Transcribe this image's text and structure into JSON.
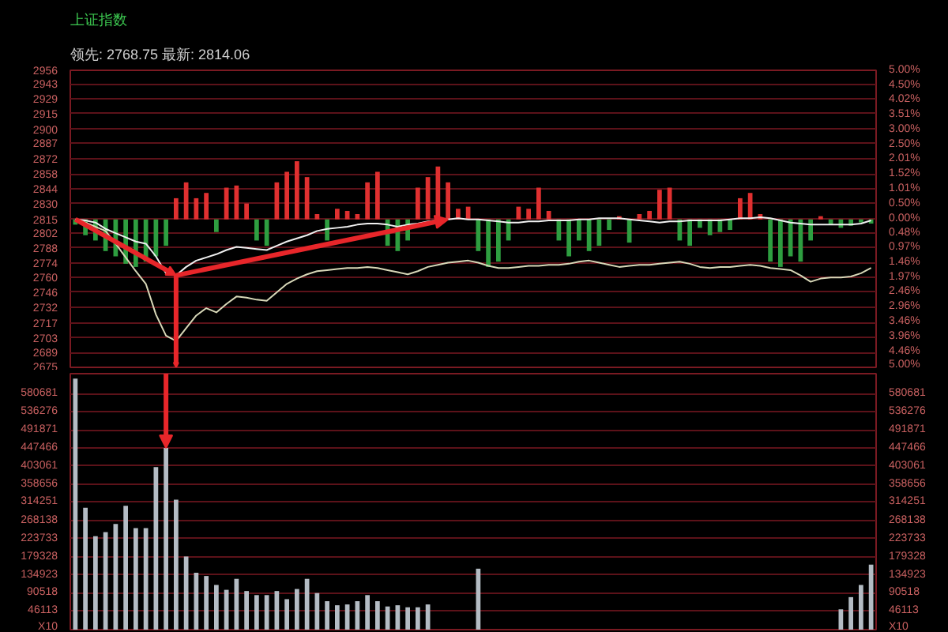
{
  "chart_data": [
    {
      "type": "line",
      "title": "上证指数",
      "subtitle": "领先: 2768.75  最新: 2814.06",
      "categories": [
        null,
        null,
        null,
        null,
        null,
        null,
        null,
        null,
        null,
        null,
        null,
        null,
        null,
        null,
        null,
        null,
        null,
        null,
        null,
        null,
        null,
        null,
        null,
        null,
        null,
        null,
        null,
        null,
        null,
        null,
        null,
        null,
        null,
        null,
        null,
        null,
        null,
        null,
        null,
        null,
        null,
        null,
        null,
        null,
        null,
        null,
        null,
        null,
        null,
        null,
        null,
        null,
        null,
        null,
        null,
        null,
        null,
        null,
        null,
        null,
        null,
        null,
        null,
        null,
        null,
        null,
        null,
        null,
        null,
        null,
        null,
        null,
        null,
        null,
        null,
        null,
        null,
        null,
        null,
        null
      ],
      "ylim": [
        2675,
        2956
      ],
      "yticks": [
        2675,
        2689,
        2703,
        2717,
        2732,
        2746,
        2760,
        2774,
        2788,
        2802,
        2815,
        2830,
        2844,
        2858,
        2872,
        2887,
        2900,
        2915,
        2929,
        2943,
        2956
      ],
      "y2lim": [
        -5,
        5
      ],
      "y2ticks": [
        {
          "value": -5,
          "label": "5.00%"
        },
        {
          "value": -4.46,
          "label": "4.46%"
        },
        {
          "value": -3.96,
          "label": "3.96%"
        },
        {
          "value": -3.46,
          "label": "3.46%"
        },
        {
          "value": -2.96,
          "label": "2.96%"
        },
        {
          "value": -2.46,
          "label": "2.46%"
        },
        {
          "value": -1.97,
          "label": "1.97%"
        },
        {
          "value": -1.46,
          "label": "1.46%"
        },
        {
          "value": -0.97,
          "label": "0.97%"
        },
        {
          "value": -0.48,
          "label": "0.48%"
        },
        {
          "value": 0,
          "label": "0.00%"
        },
        {
          "value": 0.5,
          "label": "0.50%"
        },
        {
          "value": 1.01,
          "label": "1.01%"
        },
        {
          "value": 1.52,
          "label": "1.52%"
        },
        {
          "value": 2.01,
          "label": "2.01%"
        },
        {
          "value": 2.5,
          "label": "2.50%"
        },
        {
          "value": 3,
          "label": "3.00%"
        },
        {
          "value": 3.51,
          "label": "3.51%"
        },
        {
          "value": 4.02,
          "label": "4.02%"
        },
        {
          "value": 4.5,
          "label": "4.50%"
        },
        {
          "value": 5,
          "label": "5.00%"
        }
      ],
      "tick_labels": "y",
      "grid": "y",
      "series": [
        {
          "type": "bar",
          "base": [
            2815,
            2815,
            2815,
            2815,
            2815,
            2815,
            2815,
            2815,
            2815,
            2815,
            2815,
            2815,
            2815,
            2815,
            2815,
            2815,
            2815,
            2815,
            2815,
            2815,
            2815,
            2815,
            2815,
            2815,
            2815,
            2815,
            2815,
            2815,
            2815,
            2815,
            2815,
            2815,
            2815,
            2815,
            2815,
            2815,
            2815,
            2815,
            2815,
            2815,
            2815,
            2815,
            2815,
            2815,
            2815,
            2815,
            2815,
            2815,
            2815,
            2815,
            2815,
            2815,
            2815,
            2815,
            2815,
            2815,
            2815,
            2815,
            2815,
            2815,
            2815,
            2815,
            2815,
            2815,
            2815,
            2815,
            2815,
            2815,
            2815,
            2815,
            2815,
            2815,
            2815,
            2815,
            2815,
            2815,
            2815,
            2815,
            2815,
            2815
          ],
          "values": [
            -5,
            -15,
            -20,
            -30,
            -35,
            -42,
            -45,
            -40,
            -35,
            -25,
            20,
            35,
            20,
            25,
            -12,
            30,
            32,
            15,
            -20,
            -25,
            35,
            45,
            55,
            40,
            5,
            -20,
            10,
            8,
            5,
            35,
            45,
            -25,
            -30,
            -20,
            30,
            40,
            50,
            35,
            10,
            12,
            -30,
            -45,
            -40,
            -20,
            12,
            10,
            30,
            8,
            -20,
            -35,
            -20,
            -30,
            -25,
            -10,
            3,
            -22,
            5,
            8,
            28,
            30,
            -20,
            -25,
            -8,
            -15,
            -12,
            -10,
            20,
            25,
            5,
            -40,
            -45,
            -35,
            -40,
            -20,
            3,
            -5,
            -8,
            -6,
            -3,
            -4
          ],
          "colors": [
            "#2e9e40",
            "#2e9e40",
            "#2e9e40",
            "#2e9e40",
            "#2e9e40",
            "#2e9e40",
            "#2e9e40",
            "#2e9e40",
            "#2e9e40",
            "#2e9e40",
            "#e03030",
            "#e03030",
            "#e03030",
            "#e03030",
            "#2e9e40",
            "#e03030",
            "#e03030",
            "#e03030",
            "#2e9e40",
            "#2e9e40",
            "#e03030",
            "#e03030",
            "#e03030",
            "#e03030",
            "#e03030",
            "#2e9e40",
            "#e03030",
            "#e03030",
            "#e03030",
            "#e03030",
            "#e03030",
            "#2e9e40",
            "#2e9e40",
            "#2e9e40",
            "#e03030",
            "#e03030",
            "#e03030",
            "#e03030",
            "#e03030",
            "#e03030",
            "#2e9e40",
            "#2e9e40",
            "#2e9e40",
            "#2e9e40",
            "#e03030",
            "#e03030",
            "#e03030",
            "#e03030",
            "#2e9e40",
            "#2e9e40",
            "#2e9e40",
            "#2e9e40",
            "#2e9e40",
            "#2e9e40",
            "#e03030",
            "#2e9e40",
            "#e03030",
            "#e03030",
            "#e03030",
            "#e03030",
            "#2e9e40",
            "#2e9e40",
            "#2e9e40",
            "#2e9e40",
            "#2e9e40",
            "#2e9e40",
            "#e03030",
            "#e03030",
            "#e03030",
            "#2e9e40",
            "#2e9e40",
            "#2e9e40",
            "#2e9e40",
            "#2e9e40",
            "#e03030",
            "#2e9e40",
            "#2e9e40",
            "#2e9e40",
            "#2e9e40",
            "#2e9e40"
          ]
        },
        {
          "type": "line",
          "color": "#f0f0f0",
          "values": [
            2815,
            2814,
            2812,
            2806,
            2802,
            2798,
            2794,
            2792,
            2780,
            2764,
            2762,
            2770,
            2776,
            2779,
            2782,
            2786,
            2789,
            2788,
            2787,
            2786,
            2790,
            2794,
            2797,
            2800,
            2804,
            2806,
            2807,
            2808,
            2810,
            2811,
            2811,
            2810,
            2808,
            2810,
            2811,
            2813,
            2814,
            2815,
            2816,
            2815,
            2815,
            2814,
            2813,
            2812,
            2812,
            2813,
            2813,
            2814,
            2814,
            2814,
            2815,
            2815,
            2816,
            2816,
            2816,
            2815,
            2814,
            2813,
            2812,
            2813,
            2813,
            2814,
            2814,
            2814,
            2814,
            2815,
            2816,
            2816,
            2817,
            2816,
            2814,
            2812,
            2811,
            2810,
            2810,
            2810,
            2810,
            2810,
            2811,
            2814
          ]
        },
        {
          "type": "line",
          "color": "#d8d8b8",
          "values": [
            2815,
            2812,
            2808,
            2804,
            2792,
            2779,
            2766,
            2754,
            2725,
            2705,
            2700,
            2712,
            2724,
            2731,
            2727,
            2735,
            2742,
            2741,
            2739,
            2738,
            2746,
            2754,
            2759,
            2763,
            2766,
            2767,
            2768,
            2769,
            2769,
            2770,
            2769,
            2767,
            2765,
            2763,
            2766,
            2770,
            2772,
            2774,
            2775,
            2776,
            2774,
            2771,
            2769,
            2769,
            2770,
            2771,
            2771,
            2772,
            2772,
            2773,
            2775,
            2776,
            2774,
            2772,
            2770,
            2771,
            2772,
            2772,
            2773,
            2774,
            2775,
            2773,
            2770,
            2769,
            2770,
            2770,
            2771,
            2772,
            2771,
            2769,
            2768,
            2767,
            2762,
            2756,
            2759,
            2760,
            2760,
            2761,
            2764,
            2769
          ]
        }
      ]
    },
    {
      "type": "bar",
      "color": "#b4bcc4",
      "categories": [
        null,
        null,
        null,
        null,
        null,
        null,
        null,
        null,
        null,
        null,
        null,
        null,
        null,
        null,
        null,
        null,
        null,
        null,
        null,
        null,
        null,
        null,
        null,
        null,
        null,
        null,
        null,
        null,
        null,
        null,
        null,
        null,
        null,
        null,
        null,
        null,
        null,
        null,
        null,
        null,
        null,
        null,
        null,
        null,
        null,
        null,
        null,
        null,
        null,
        null,
        null,
        null,
        null,
        null,
        null,
        null,
        null,
        null,
        null,
        null,
        null,
        null,
        null,
        null,
        null,
        null,
        null,
        null,
        null,
        null,
        null,
        null,
        null,
        null,
        null,
        null,
        null,
        null,
        null,
        null
      ],
      "values": [
        618000,
        300000,
        230000,
        240000,
        260000,
        305000,
        250000,
        250000,
        400000,
        447000,
        320000,
        180000,
        140000,
        132000,
        110000,
        98000,
        125000,
        95000,
        85000,
        85000,
        95000,
        75000,
        100000,
        125000,
        90000,
        70000,
        60000,
        62000,
        70000,
        85000,
        70000,
        57000,
        60000,
        55000,
        55000,
        62000,
        null,
        null,
        null,
        null,
        150000,
        null,
        null,
        null,
        null,
        null,
        null,
        null,
        null,
        null,
        null,
        null,
        null,
        null,
        null,
        null,
        null,
        null,
        null,
        null,
        null,
        null,
        null,
        null,
        null,
        null,
        null,
        null,
        null,
        null,
        null,
        null,
        null,
        null,
        null,
        null,
        50000,
        80000,
        110000,
        160000
      ],
      "ylim": [
        0,
        630000
      ],
      "yticks": [
        {
          "value": 0,
          "label": "X10"
        },
        46113,
        90518,
        134923,
        179328,
        223733,
        268138,
        314251,
        358656,
        403061,
        447466,
        491871,
        536276,
        580681
      ],
      "y2lim": [
        0,
        630000
      ],
      "y2ticks": [
        {
          "value": 0,
          "label": "X10"
        },
        46113,
        90518,
        134923,
        179328,
        223733,
        268138,
        314251,
        358656,
        403061,
        447466,
        491871,
        536276,
        580681
      ],
      "tick_labels": "y",
      "grid": "y"
    }
  ]
}
